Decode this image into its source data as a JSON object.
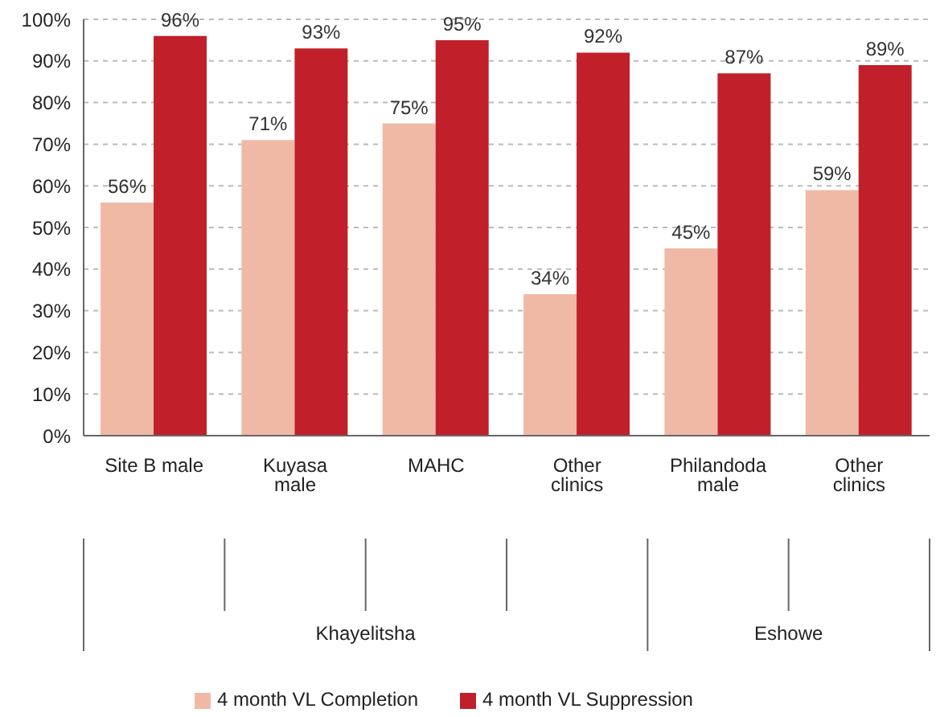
{
  "chart_data": {
    "type": "bar",
    "categories": [
      "Site B male",
      "Kuyasa male",
      "MAHC",
      "Other clinics",
      "Philandoda male",
      "Other clinics"
    ],
    "series": [
      {
        "name": "4 month VL Completion",
        "color": "#f0b9a6",
        "values": [
          56,
          71,
          75,
          34,
          45,
          59
        ],
        "value_labels": [
          "56%",
          "71%",
          "75%",
          "34%",
          "45%",
          "59%"
        ]
      },
      {
        "name": "4 month VL Suppression",
        "color": "#c1202b",
        "values": [
          96,
          93,
          95,
          92,
          87,
          89
        ],
        "value_labels": [
          "96%",
          "93%",
          "95%",
          "92%",
          "87%",
          "89%"
        ]
      }
    ],
    "ylim": [
      0,
      100
    ],
    "yticks": [
      {
        "value": 0,
        "label": "0%"
      },
      {
        "value": 10,
        "label": "10%"
      },
      {
        "value": 20,
        "label": "20%"
      },
      {
        "value": 30,
        "label": "30%"
      },
      {
        "value": 40,
        "label": "40%"
      },
      {
        "value": 50,
        "label": "50%"
      },
      {
        "value": 60,
        "label": "60%"
      },
      {
        "value": 70,
        "label": "70%"
      },
      {
        "value": 80,
        "label": "80%"
      },
      {
        "value": 90,
        "label": "90%"
      },
      {
        "value": 100,
        "label": "100%"
      }
    ],
    "grid": "y",
    "legend": "bottom",
    "annotations": [
      "Khayelitsha",
      "Eshowe"
    ]
  }
}
